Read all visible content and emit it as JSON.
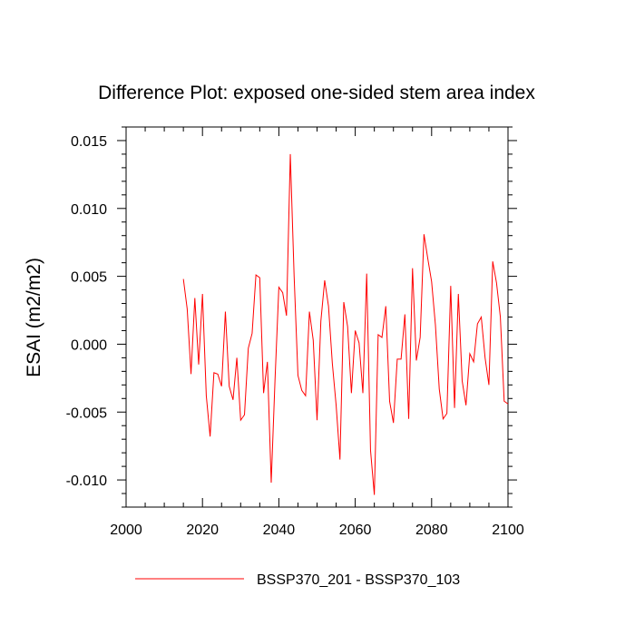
{
  "chart_data": {
    "type": "line",
    "title": "Difference Plot: exposed one-sided stem area index",
    "xlabel": "",
    "ylabel": "ESAI  (m2/m2)",
    "xlim": [
      2000,
      2100
    ],
    "ylim": [
      -0.012,
      0.016
    ],
    "x_ticks": [
      2000,
      2020,
      2040,
      2060,
      2080,
      2100
    ],
    "x_tick_labels": [
      "2000",
      "2020",
      "2040",
      "2060",
      "2080",
      "2100"
    ],
    "y_ticks": [
      -0.01,
      -0.005,
      0.0,
      0.005,
      0.01,
      0.015
    ],
    "y_tick_labels": [
      "-0.010",
      "-0.005",
      "0.000",
      "0.005",
      "0.010",
      "0.015"
    ],
    "legend_position": "bottom-center",
    "series": [
      {
        "name": "BSSP370_201 - BSSP370_103",
        "color": "#ff0000",
        "x": [
          2015,
          2016,
          2017,
          2018,
          2019,
          2020,
          2021,
          2022,
          2023,
          2024,
          2025,
          2026,
          2027,
          2028,
          2029,
          2030,
          2031,
          2032,
          2033,
          2034,
          2035,
          2036,
          2037,
          2038,
          2039,
          2040,
          2041,
          2042,
          2043,
          2044,
          2045,
          2046,
          2047,
          2048,
          2049,
          2050,
          2051,
          2052,
          2053,
          2054,
          2055,
          2056,
          2057,
          2058,
          2059,
          2060,
          2061,
          2062,
          2063,
          2064,
          2065,
          2066,
          2067,
          2068,
          2069,
          2070,
          2071,
          2072,
          2073,
          2074,
          2075,
          2076,
          2077,
          2078,
          2079,
          2080,
          2081,
          2082,
          2083,
          2084,
          2085,
          2086,
          2087,
          2088,
          2089,
          2090,
          2091,
          2092,
          2093,
          2094,
          2095,
          2096,
          2097,
          2098,
          2099,
          2100
        ],
        "values": [
          0.0048,
          0.0026,
          -0.0022,
          0.0034,
          -0.0015,
          0.0037,
          -0.0038,
          -0.0068,
          -0.0021,
          -0.0022,
          -0.0031,
          0.0024,
          -0.0031,
          -0.0041,
          -0.001,
          -0.0056,
          -0.0052,
          -0.0003,
          0.0008,
          0.0051,
          0.0049,
          -0.0036,
          -0.0013,
          -0.0102,
          -0.0026,
          0.0042,
          0.0038,
          0.0021,
          0.014,
          0.005,
          -0.0023,
          -0.0034,
          -0.0038,
          0.0024,
          0.0003,
          -0.0056,
          0.0017,
          0.0047,
          0.0028,
          -0.0014,
          -0.0045,
          -0.0085,
          0.0031,
          0.0013,
          -0.0036,
          0.001,
          0.0001,
          -0.0036,
          0.0052,
          -0.0078,
          -0.0111,
          0.0007,
          0.0005,
          0.0028,
          -0.0042,
          -0.0058,
          -0.0011,
          -0.0011,
          0.0022,
          -0.0055,
          0.0056,
          -0.0012,
          0.0005,
          0.0081,
          0.0063,
          0.0046,
          0.0014,
          -0.0033,
          -0.0055,
          -0.0051,
          0.0043,
          -0.0047,
          0.0037,
          -0.0027,
          -0.0045,
          -0.0007,
          -0.0013,
          0.0015,
          0.002,
          -0.001,
          -0.003,
          0.0061,
          0.0045,
          0.002,
          -0.0042,
          -0.0044
        ]
      }
    ]
  }
}
